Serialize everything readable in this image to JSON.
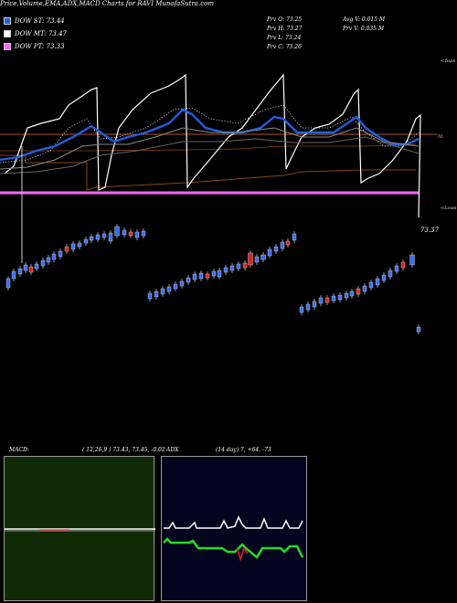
{
  "header": {
    "title": "Price,Volume,EMA,ADX,MACD Charts for RAVI MunafaSutra.com"
  },
  "legend": [
    {
      "label": "DOW ST: 73.44",
      "color": "#1f5fe0"
    },
    {
      "label": "DOW MT: 73.47",
      "color": "#ffffff"
    },
    {
      "label": "DOW PT: 73.33",
      "color": "#ff66ff"
    }
  ],
  "stats": {
    "prev_open": "Prv  O: 73.25",
    "prev_high": "Prv  H: 73.27",
    "prev_low": "Prv  L: 73.24",
    "prev_close": "Prv  C: 73.26",
    "avg_volume": "Avg V: 0.015 M",
    "prev_volume": "Prv  V: 0.035 M"
  },
  "labels": {
    "tops": "<Tops",
    "lows": "<Lows",
    "level_70": "70",
    "last_price": "73.37"
  },
  "macd": {
    "title": "MACD:",
    "params": "( 12,26,9 ) 73.43, 73.45, -0.02"
  },
  "adx": {
    "title": "ADX",
    "params": "(14  day) 7, +64, -73"
  },
  "colors": {
    "dow_st": "#1f5fe0",
    "dow_mt": "#ffffff",
    "dow_pt": "#ff66ff",
    "brown": "#8b4513",
    "up_candle": "#3a6cf0",
    "down_candle": "#e02020",
    "adx_white": "#ffffff",
    "adx_green": "#22dd22",
    "adx_red": "#e02020",
    "macd_bg": "#0f2a04",
    "adx_bg": "#04041e"
  },
  "chart_data": [
    {
      "type": "candlestick",
      "title": "Price,Volume,EMA,ADX,MACD Charts for RAVI MunafaSutra.com",
      "x": [
        1,
        2,
        3,
        4,
        5,
        6,
        7,
        8,
        9,
        10,
        11,
        12,
        13,
        14,
        15,
        16,
        17,
        18,
        19,
        20,
        21,
        22,
        23,
        24,
        25,
        26,
        27,
        28,
        29,
        30,
        31,
        32,
        33,
        34,
        35,
        36,
        37,
        38,
        39,
        40,
        41,
        42,
        43,
        44,
        45,
        46,
        47,
        48,
        49,
        50,
        51,
        52,
        53,
        54,
        55,
        56,
        57,
        58,
        59,
        60,
        61,
        62,
        63,
        64,
        65
      ],
      "ohlc_note": "approximate price path read from candle positions (unitless, relative)",
      "close": [
        71.6,
        71.9,
        72.1,
        72.3,
        72.4,
        72.6,
        72.7,
        72.9,
        73.0,
        73.1,
        73.3,
        73.4,
        73.6,
        73.7,
        73.7,
        73.9,
        73.8,
        73.8,
        71.8,
        71.9,
        72.0,
        72.1,
        72.2,
        72.3,
        72.4,
        72.5,
        72.5,
        72.6,
        72.7,
        72.8,
        72.9,
        73.0,
        73.1,
        73.2,
        73.3,
        73.4,
        73.5,
        73.6,
        73.7,
        73.8,
        73.9,
        74.0,
        71.6,
        71.7,
        71.8,
        71.9,
        71.9,
        72.0,
        72.1,
        72.2,
        72.3,
        72.4,
        72.5,
        72.6,
        72.7,
        72.8,
        72.9,
        73.0,
        73.1,
        73.2,
        73.3,
        73.35,
        73.37,
        73.26,
        73.37
      ],
      "series": [
        {
          "name": "DOW ST: 73.44"
        },
        {
          "name": "DOW MT: 73.47"
        },
        {
          "name": "DOW PT: 73.33"
        }
      ]
    },
    {
      "type": "line",
      "title": "MACD:",
      "params": "( 12,26,9 ) 73.43, 73.45, -0.02",
      "macd": 73.43,
      "signal": 73.45,
      "histogram": -0.02
    },
    {
      "type": "line",
      "title": "ADX",
      "params": "(14  day) 7, +64, -73",
      "adx": 7,
      "plus_di": 64,
      "minus_di": -73
    }
  ]
}
